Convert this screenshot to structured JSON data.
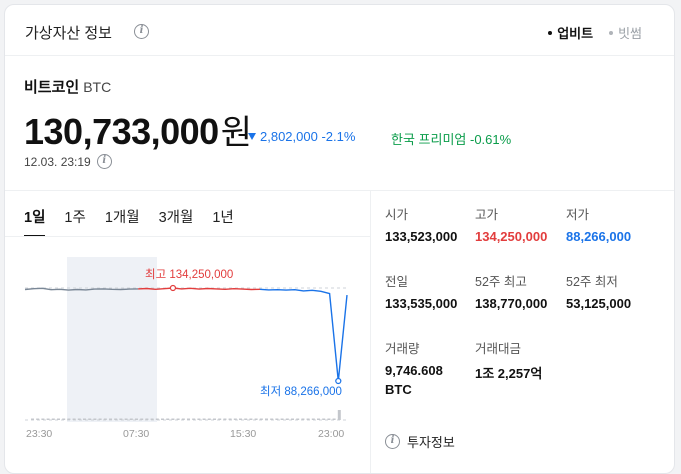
{
  "header": {
    "title": "가상자산 정보",
    "exchanges": [
      {
        "label": "업비트",
        "active": true
      },
      {
        "label": "빗썸",
        "active": false
      }
    ]
  },
  "coin": {
    "name": "비트코인",
    "symbol": "BTC",
    "price": "130,733,000",
    "unit": "원",
    "change": "2,802,000 -2.1%",
    "premium": "한국 프리미엄 -0.61%",
    "timestamp": "12.03. 23:19"
  },
  "period_tabs": [
    "1일",
    "1주",
    "1개월",
    "3개월",
    "1년"
  ],
  "chart": {
    "high_label": "최고 134,250,000",
    "low_label": "최저 88,266,000",
    "x_labels": [
      "23:30",
      "07:30",
      "15:30",
      "23:00"
    ]
  },
  "chart_data": {
    "type": "line",
    "x_ticks": [
      "23:30",
      "07:30",
      "15:30",
      "23:00"
    ],
    "y_range": [
      88266000,
      134250000
    ],
    "values": [
      133523000,
      133900000,
      134100000,
      133400000,
      133600000,
      133200000,
      133500000,
      133300000,
      133700000,
      133800000,
      133600000,
      133500000,
      133700000,
      133800000,
      134000000,
      133600000,
      133900000,
      134250000,
      133800000,
      134100000,
      133700000,
      134000000,
      133800000,
      133600000,
      133900000,
      133700000,
      133500000,
      133600000,
      133300000,
      133400000,
      133200000,
      133400000,
      132800000,
      133100000,
      132600000,
      131500000,
      88266000,
      130733000
    ],
    "high": 134250000,
    "low": 88266000
  },
  "stats": [
    {
      "label": "시가",
      "value": "133,523,000",
      "tone": "normal"
    },
    {
      "label": "고가",
      "value": "134,250,000",
      "tone": "up"
    },
    {
      "label": "저가",
      "value": "88,266,000",
      "tone": "down"
    },
    {
      "label": "전일",
      "value": "133,535,000",
      "tone": "normal"
    },
    {
      "label": "52주 최고",
      "value": "138,770,000",
      "tone": "normal"
    },
    {
      "label": "52주 최저",
      "value": "53,125,000",
      "tone": "normal"
    },
    {
      "label": "거래량",
      "value": "9,746.608",
      "value2": "BTC",
      "tone": "normal"
    },
    {
      "label": "거래대금",
      "value": "1조 2,257억",
      "tone": "normal"
    }
  ],
  "invest_info": "투자정보",
  "colors": {
    "up": "#e23d3d",
    "down": "#1a73e8",
    "premium": "#0a9c4a",
    "line": "#7a8796"
  }
}
